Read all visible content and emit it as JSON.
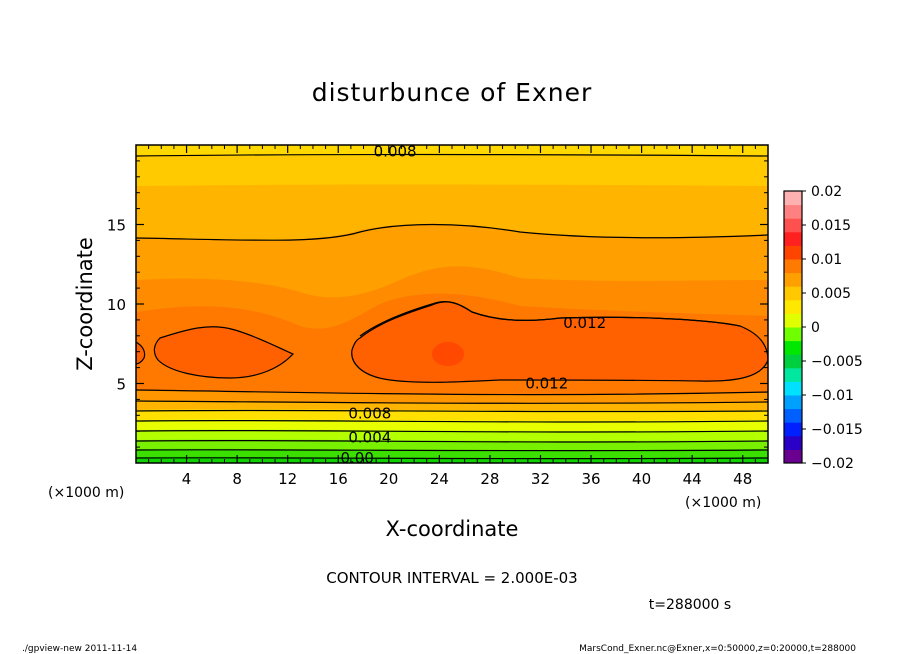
{
  "chart_data": {
    "type": "heatmap",
    "subtype": "filled-contour",
    "title": "disturbunce of Exner",
    "xlabel": "X-coordinate",
    "ylabel": "Z-coordinate",
    "x_unit": "(×1000 m)",
    "y_unit": "(×1000 m)",
    "xlim": [
      0,
      50
    ],
    "ylim": [
      0,
      20
    ],
    "x_ticks": [
      4,
      8,
      12,
      16,
      20,
      24,
      28,
      32,
      36,
      40,
      44,
      48
    ],
    "y_ticks": [
      5,
      10,
      15
    ],
    "contour_interval_text": "CONTOUR INTERVAL = 2.000E-03",
    "time_text": "t=288000 s",
    "colorbar": {
      "ticks": [
        "0.02",
        "0.015",
        "0.01",
        "0.005",
        "0",
        "−0.005",
        "−0.01",
        "−0.015",
        "−0.02"
      ],
      "range": [
        -0.02,
        0.02
      ],
      "colors": [
        "#6a0090",
        "#2a00c8",
        "#0020ff",
        "#0060ff",
        "#00a0ff",
        "#00e0ff",
        "#00e8a0",
        "#00d040",
        "#00e800",
        "#70ff00",
        "#e0ff00",
        "#ffe800",
        "#ffc800",
        "#ffa000",
        "#ff7a00",
        "#ff4400",
        "#ff2020",
        "#ff5050",
        "#ff8080",
        "#ffb0b0"
      ]
    },
    "contour_labels": [
      {
        "text": "0.008",
        "x": 20.5,
        "z": 19.6
      },
      {
        "text": "0.012",
        "x": 35.5,
        "z": 8.8
      },
      {
        "text": "0.012",
        "x": 32.5,
        "z": 5.0
      },
      {
        "text": "0.008",
        "x": 18.5,
        "z": 3.1
      },
      {
        "text": "0.004",
        "x": 18.5,
        "z": 1.6
      },
      {
        "text": "0.00",
        "x": 17.5,
        "z": 0.3
      }
    ],
    "grid": false
  },
  "footer": {
    "left": "./gpview-new   2011-11-14",
    "right": "MarsCond_Exner.nc@Exner,x=0:50000,z=0:20000,t=288000"
  }
}
